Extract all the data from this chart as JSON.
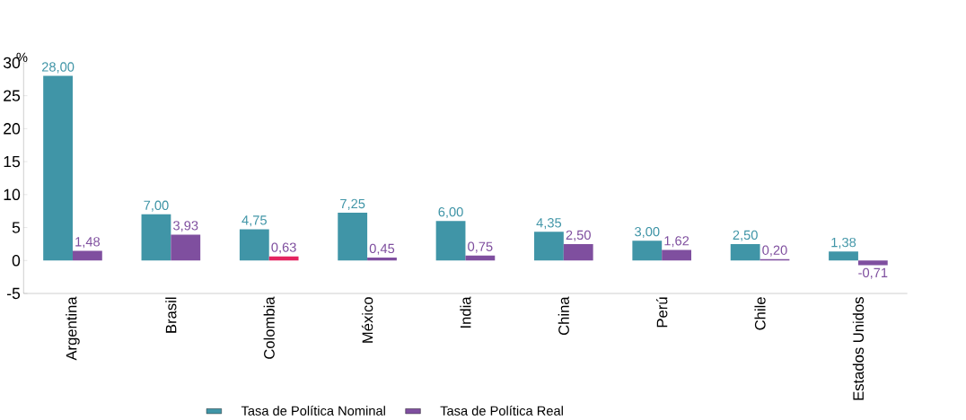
{
  "chart_data": {
    "type": "bar",
    "ylabel": "%",
    "categories": [
      "Argentina",
      "Brasil",
      "Colombia",
      "México",
      "India",
      "China",
      "Perú",
      "Chile",
      "Estados Unidos"
    ],
    "series": [
      {
        "name": "Tasa de Política Nominal",
        "color": "#4095a7",
        "values": [
          28.0,
          7.0,
          4.75,
          7.25,
          6.0,
          4.35,
          3.0,
          2.5,
          1.38
        ],
        "value_labels": [
          "28,00",
          "7,00",
          "4,75",
          "7,25",
          "6,00",
          "4,35",
          "3,00",
          "2,50",
          "1,38"
        ]
      },
      {
        "name": "Tasa de Política Real",
        "color": "#7f4f9f",
        "colors": [
          "#7f4f9f",
          "#7f4f9f",
          "#e4245f",
          "#7f4f9f",
          "#7f4f9f",
          "#7f4f9f",
          "#7f4f9f",
          "#7f4f9f",
          "#7f4f9f"
        ],
        "values": [
          1.48,
          3.93,
          0.63,
          0.45,
          0.75,
          2.5,
          1.62,
          0.2,
          -0.71
        ],
        "value_labels": [
          "1,48",
          "3,93",
          "0,63",
          "0,45",
          "0,75",
          "2,50",
          "1,62",
          "0,20",
          "-0,71"
        ]
      }
    ],
    "ylim": [
      -5,
      30
    ],
    "yticks": [
      -5,
      0,
      5,
      10,
      15,
      20,
      25,
      30
    ],
    "grid": false,
    "legend": "bottom"
  }
}
